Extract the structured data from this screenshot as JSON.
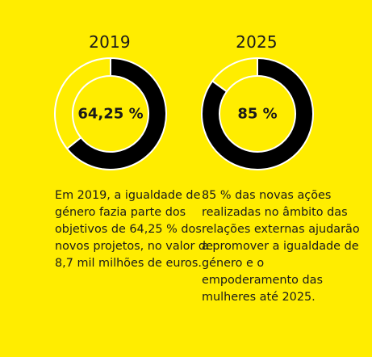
{
  "chart_data": [
    {
      "type": "pie",
      "title": "2019",
      "value": 64.25,
      "total": 100,
      "center_label": "64,25 %",
      "description": "Em 2019, a igualdade de género fazia parte dos objetivos de 64,25 % dos novos projetos, no valor de 8,7 mil milhões de euros."
    },
    {
      "type": "pie",
      "title": "2025",
      "value": 85,
      "total": 100,
      "center_label": "85 %",
      "description": "85 % das novas ações realizadas no âmbito das relações externas ajudarão a promover a igualdade de género e o empoderamento das mulheres até 2025."
    }
  ],
  "colors": {
    "background": "#FFED00",
    "filled": "#000000",
    "outline": "#FFFFFF"
  }
}
